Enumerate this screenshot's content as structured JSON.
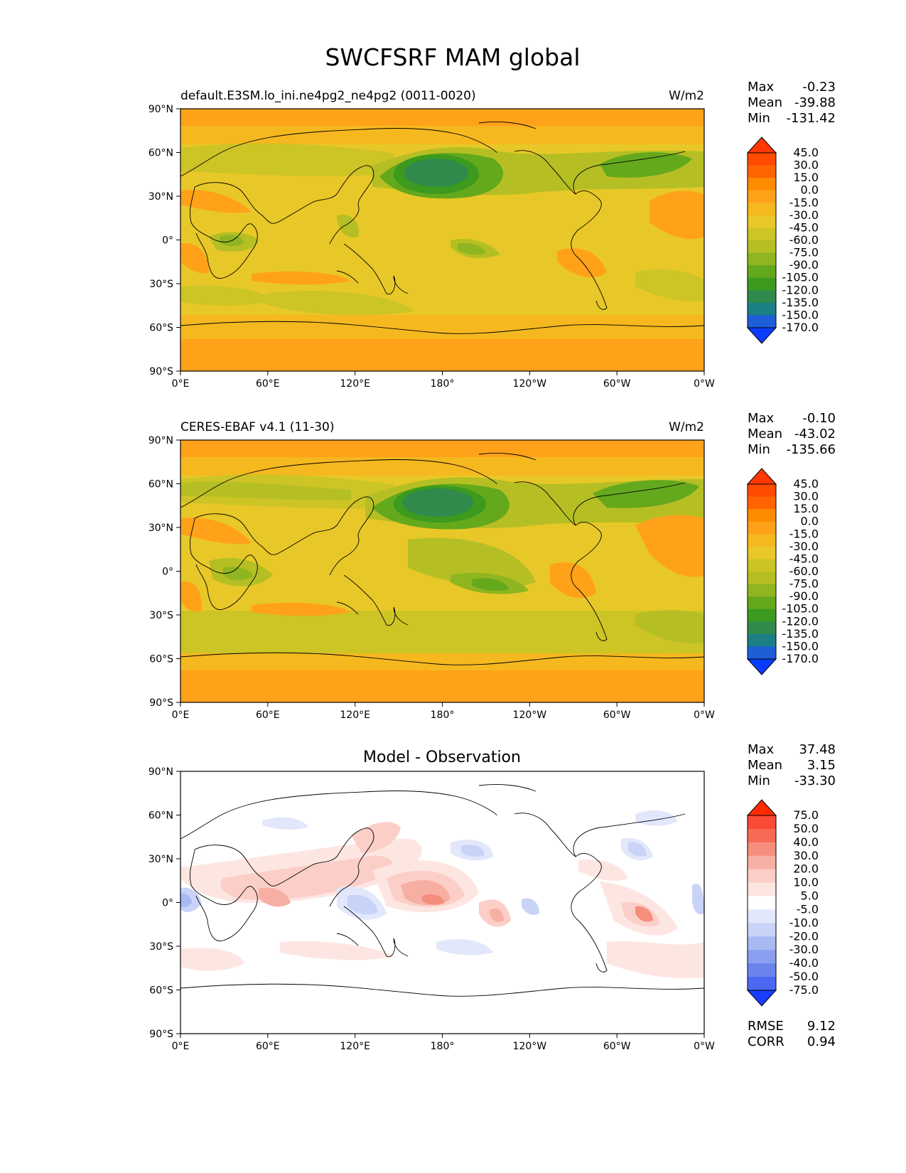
{
  "title": "SWCFSRF MAM global",
  "units": "W/m2",
  "lat_ticks": [
    "90°N",
    "60°N",
    "30°N",
    "0°",
    "30°S",
    "60°S",
    "90°S"
  ],
  "lon_ticks": [
    "0°E",
    "60°E",
    "120°E",
    "180°",
    "120°W",
    "60°W",
    "0°W"
  ],
  "panels": [
    {
      "id": "model",
      "subtitle_left": "default.E3SM.lo_ini.ne4pg2_ne4pg2 (0011-0020)",
      "subtitle_center": "",
      "subtitle_right": "W/m2",
      "stats": [
        {
          "label": "Max",
          "value": "-0.23"
        },
        {
          "label": "Mean",
          "value": "-39.88"
        },
        {
          "label": "Min",
          "value": "-131.42"
        }
      ],
      "colorbar": {
        "levels": [
          "45.0",
          "30.0",
          "15.0",
          "0.0",
          "-15.0",
          "-30.0",
          "-45.0",
          "-60.0",
          "-75.0",
          "-90.0",
          "-105.0",
          "-120.0",
          "-135.0",
          "-150.0",
          "-170.0"
        ],
        "colors": [
          "#ff3700",
          "#ff4b00",
          "#ff6400",
          "#ff8c00",
          "#ffa21a",
          "#f5b81f",
          "#e8c828",
          "#cdc426",
          "#b5bf24",
          "#8fb520",
          "#64a81c",
          "#3c9a1e",
          "#2f8a4c",
          "#1b7f85",
          "#1e5fd8",
          "#0a3cff"
        ]
      },
      "extra_stats": []
    },
    {
      "id": "obs",
      "subtitle_left": "CERES-EBAF v4.1 (11-30)",
      "subtitle_center": "",
      "subtitle_right": "W/m2",
      "stats": [
        {
          "label": "Max",
          "value": "-0.10"
        },
        {
          "label": "Mean",
          "value": "-43.02"
        },
        {
          "label": "Min",
          "value": "-135.66"
        }
      ],
      "colorbar": {
        "levels": [
          "45.0",
          "30.0",
          "15.0",
          "0.0",
          "-15.0",
          "-30.0",
          "-45.0",
          "-60.0",
          "-75.0",
          "-90.0",
          "-105.0",
          "-120.0",
          "-135.0",
          "-150.0",
          "-170.0"
        ],
        "colors": [
          "#ff3700",
          "#ff4b00",
          "#ff6400",
          "#ff8c00",
          "#ffa21a",
          "#f5b81f",
          "#e8c828",
          "#cdc426",
          "#b5bf24",
          "#8fb520",
          "#64a81c",
          "#3c9a1e",
          "#2f8a4c",
          "#1b7f85",
          "#1e5fd8",
          "#0a3cff"
        ]
      },
      "extra_stats": []
    },
    {
      "id": "diff",
      "subtitle_left": "",
      "subtitle_center": "Model - Observation",
      "subtitle_right": "",
      "stats": [
        {
          "label": "Max",
          "value": "37.48"
        },
        {
          "label": "Mean",
          "value": "3.15"
        },
        {
          "label": "Min",
          "value": "-33.30"
        }
      ],
      "colorbar": {
        "levels": [
          "75.0",
          "50.0",
          "40.0",
          "30.0",
          "20.0",
          "10.0",
          "5.0",
          "-5.0",
          "-10.0",
          "-20.0",
          "-30.0",
          "-40.0",
          "-50.0",
          "-75.0"
        ],
        "colors": [
          "#ff2a00",
          "#fa4a35",
          "#f66a55",
          "#f58e7c",
          "#f8afa3",
          "#fbcfc8",
          "#fde6e2",
          "#ffffff",
          "#e2e7fb",
          "#c9d3f7",
          "#a9b9f3",
          "#8a9ff0",
          "#6a84ee",
          "#4a68f2",
          "#1a3cff"
        ]
      },
      "extra_stats": [
        {
          "label": "RMSE",
          "value": "9.12"
        },
        {
          "label": "CORR",
          "value": "0.94"
        }
      ]
    }
  ]
}
